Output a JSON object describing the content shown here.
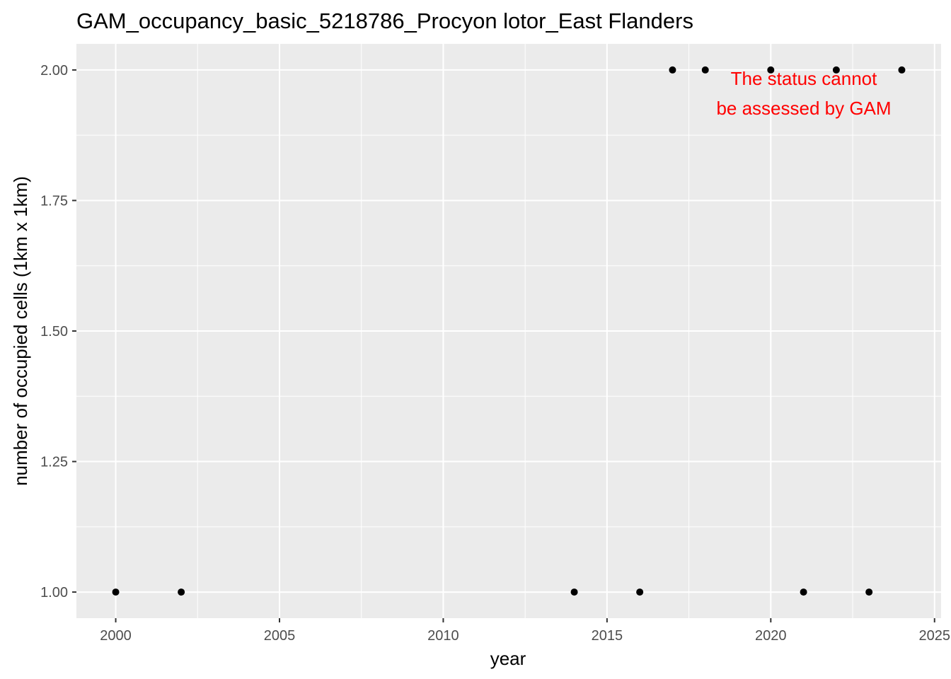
{
  "chart_data": {
    "type": "scatter",
    "title": "GAM_occupancy_basic_5218786_Procyon lotor_East Flanders",
    "xlabel": "year",
    "ylabel": "number of occupied cells (1km x 1km)",
    "x": [
      2000,
      2002,
      2014,
      2016,
      2017,
      2018,
      2020,
      2021,
      2022,
      2023,
      2024
    ],
    "y": [
      1,
      1,
      1,
      1,
      2,
      2,
      2,
      1,
      2,
      1,
      2
    ],
    "xlim": [
      1998.8,
      2025.2
    ],
    "ylim": [
      0.95,
      2.05
    ],
    "x_ticks": [
      2000,
      2005,
      2010,
      2015,
      2020,
      2025
    ],
    "x_tick_labels": [
      "2000",
      "2005",
      "2010",
      "2015",
      "2020",
      "2025"
    ],
    "y_ticks": [
      1.0,
      1.25,
      1.5,
      1.75,
      2.0
    ],
    "y_tick_labels": [
      "1.00",
      "1.25",
      "1.50",
      "1.75",
      "2.00"
    ],
    "grid": true,
    "annotation": {
      "lines": [
        "The status cannot",
        "be assessed by GAM"
      ],
      "color": "#ff0000",
      "position": "top-right"
    },
    "point_color": "#000000",
    "panel_background": "#ebebeb",
    "grid_color": "#ffffff"
  }
}
